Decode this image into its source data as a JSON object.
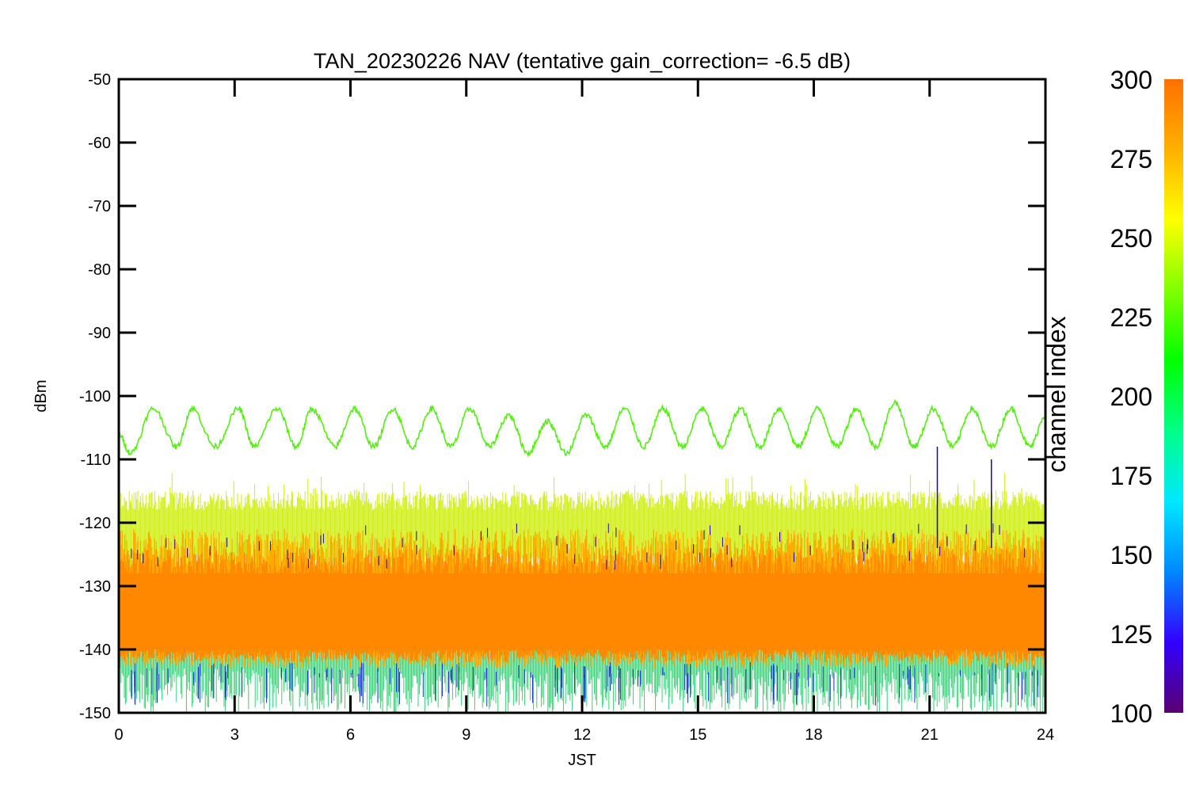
{
  "chart_data": {
    "type": "line",
    "title": "TAN_20230226 NAV (tentative gain_correction= -6.5 dB)",
    "xlabel": "JST",
    "ylabel": "dBm",
    "xlim": [
      0,
      24
    ],
    "ylim": [
      -150,
      -50
    ],
    "x_ticks": [
      0,
      3,
      6,
      9,
      12,
      15,
      18,
      21,
      24
    ],
    "x_tick_labels": [
      "0",
      "3",
      "6",
      "9",
      "12",
      "15",
      "18",
      "21",
      "24"
    ],
    "y_ticks": [
      -50,
      -60,
      -70,
      -80,
      -90,
      -100,
      -110,
      -120,
      -130,
      -140,
      -150
    ],
    "y_tick_labels": [
      "-50",
      "-60",
      "-70",
      "-80",
      "-90",
      "-100",
      "-110",
      "-120",
      "-130",
      "-140",
      "-150"
    ],
    "grid": false,
    "colorbar": {
      "title": "channel index",
      "range": [
        100,
        300
      ],
      "ticks": [
        300,
        275,
        250,
        225,
        200,
        175,
        150,
        125,
        100
      ],
      "tick_labels": [
        "300",
        "275",
        "250",
        "225",
        "200",
        "175",
        "150",
        "125",
        "100"
      ],
      "colors": [
        "#5a0070",
        "#3300ff",
        "#0088ff",
        "#00e8ff",
        "#00ff88",
        "#00ff00",
        "#80ff00",
        "#ffff00",
        "#ffb000",
        "#ff7000"
      ]
    },
    "series": [
      {
        "channel_index": 240,
        "color": "#55ee11",
        "description_of_shape": "sinusoidal oscillation",
        "x": [
          0.0,
          0.3,
          0.9,
          1.5,
          1.9,
          2.5,
          3.1,
          3.5,
          4.1,
          4.6,
          5.0,
          5.6,
          6.1,
          6.6,
          7.1,
          7.6,
          8.1,
          8.6,
          9.1,
          9.6,
          10.1,
          10.6,
          11.1,
          11.6,
          12.1,
          12.6,
          13.1,
          13.6,
          14.1,
          14.6,
          15.1,
          15.6,
          16.1,
          16.6,
          17.1,
          17.6,
          18.1,
          18.6,
          19.1,
          19.6,
          20.1,
          20.6,
          21.1,
          21.6,
          22.1,
          22.6,
          23.1,
          23.6,
          24.0
        ],
        "y": [
          -106,
          -109,
          -102,
          -108,
          -102,
          -108,
          -102,
          -108,
          -102,
          -108,
          -102,
          -108,
          -102,
          -108,
          -102,
          -108,
          -102,
          -108,
          -102,
          -108,
          -103,
          -109,
          -104,
          -109,
          -103,
          -108,
          -102,
          -108,
          -102,
          -108,
          -102,
          -108,
          -102,
          -108,
          -102,
          -108,
          -102,
          -108,
          -102,
          -108,
          -101,
          -108,
          -102,
          -108,
          -102,
          -108,
          -102,
          -108,
          -103
        ]
      },
      {
        "band": "upper envelope (channels ~240-270)",
        "y_range": [
          -125,
          -115
        ],
        "color": "#ccee00"
      },
      {
        "band": "main body (channels ~280-300)",
        "y_range": [
          -142,
          -120
        ],
        "center": -135,
        "color": "#ff8800"
      },
      {
        "band": "lower envelope (channels ~100-230)",
        "y_range": [
          -150,
          -140
        ],
        "color": "#22cc66"
      },
      {
        "spikes": [
          {
            "x": 21.2,
            "y": -108
          },
          {
            "x": 22.6,
            "y": -110
          }
        ],
        "color": "#2200aa"
      }
    ]
  }
}
